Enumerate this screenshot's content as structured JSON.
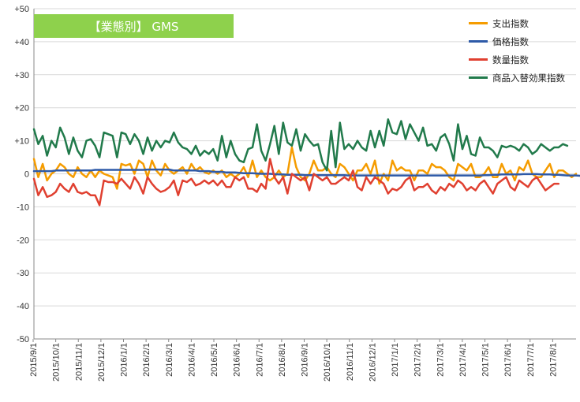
{
  "chart_data": {
    "type": "line",
    "title": "【業態別】 GMS",
    "xlabel": "",
    "ylabel": "",
    "ylim": [
      -50,
      50
    ],
    "y_ticks": [
      "+50",
      "+40",
      "+30",
      "+20",
      "+10",
      "0",
      "-10",
      "-20",
      "-30",
      "-40",
      "-50"
    ],
    "x_tick_labels": [
      "2015/9/1",
      "2015/10/1",
      "2015/11/1",
      "2015/12/1",
      "2016/1/1",
      "2016/2/1",
      "2016/3/1",
      "2016/4/1",
      "2016/5/1",
      "2016/6/1",
      "2016/7/1",
      "2016/8/1",
      "2016/9/1",
      "2016/10/1",
      "2016/11/1",
      "2016/12/1",
      "2017/1/1",
      "2017/2/1",
      "2017/3/1",
      "2017/4/1",
      "2017/5/1",
      "2017/6/1",
      "2017/7/1",
      "2017/8/1"
    ],
    "grid": true,
    "legend_position": "top-right",
    "series": [
      {
        "name": "支出指数",
        "color": "#f59c00",
        "values": [
          4.5,
          -1,
          3,
          -2,
          0,
          1,
          3,
          2,
          0,
          -1,
          2,
          0,
          -1,
          1,
          -1,
          1,
          0,
          -0.5,
          -1,
          -4.5,
          3,
          2.5,
          3,
          0,
          4,
          3,
          -1,
          4,
          1,
          -0.5,
          3,
          1,
          0,
          1,
          2,
          0,
          3,
          1,
          2,
          0.5,
          0,
          1,
          0,
          1,
          -1,
          0,
          -1,
          0,
          2,
          -1,
          4,
          -1,
          1,
          -1,
          -2,
          -1,
          1,
          -1,
          0,
          8,
          2,
          -1,
          -2,
          0,
          4,
          1,
          1,
          2,
          0,
          -1,
          3,
          2,
          0,
          -2,
          1,
          1,
          3,
          0,
          4,
          -3,
          0,
          -2,
          4,
          1,
          2,
          1,
          1,
          -2,
          1,
          1,
          0,
          3,
          2,
          2,
          1,
          -1,
          -2,
          3,
          2,
          1,
          3,
          -1,
          -1,
          0,
          2,
          -1,
          -1,
          3,
          0,
          1,
          -2,
          2,
          1,
          4,
          0,
          -1,
          -1,
          1,
          3,
          -1,
          1,
          1,
          0,
          -1,
          0
        ]
      },
      {
        "name": "価格指数",
        "color": "#2e5aa8",
        "values": [
          0.8,
          0.8,
          0.8,
          0.8,
          0.8,
          1,
          1,
          1,
          1,
          1,
          1,
          1,
          1,
          1,
          1.2,
          1.2,
          1.2,
          1.2,
          1.2,
          1.2,
          1.2,
          1.2,
          1.2,
          1.2,
          1.2,
          1.2,
          1.3,
          1.3,
          1.3,
          1.3,
          1.3,
          1.3,
          1,
          1,
          1,
          1,
          1,
          1,
          0.8,
          0.8,
          0.8,
          0.6,
          0.6,
          0.6,
          0.4,
          0.4,
          0.4,
          0.3,
          0.2,
          0.2,
          0.2,
          0.1,
          0,
          0,
          0,
          -0.1,
          -0.2,
          -0.2,
          -0.3,
          -0.3,
          -0.3,
          -0.3,
          -0.4,
          -0.4,
          -0.4,
          -0.4,
          -0.4,
          -0.4,
          -0.4,
          -0.4,
          -0.4,
          -0.4,
          -0.5,
          -0.5,
          -0.5,
          -0.5,
          -0.5,
          -0.5,
          -0.5,
          -0.5,
          -0.5,
          -0.5,
          -0.5,
          -0.5,
          -0.5,
          -0.5,
          -0.5,
          -0.5,
          -0.5,
          -0.5,
          -0.5,
          -0.5,
          -0.5,
          -0.5,
          -0.5,
          -0.5,
          -0.5,
          -0.5,
          -0.5,
          -0.5,
          -0.5,
          -0.5,
          -0.5,
          -0.4,
          -0.4,
          -0.3,
          -0.3,
          -0.2,
          -0.2,
          -0.2,
          -0.2,
          -0.2,
          -0.1,
          -0.1,
          -0.1,
          -0.1,
          -0.2,
          -0.2,
          -0.2,
          -0.3,
          -0.3,
          -0.4,
          -0.5,
          -0.5,
          -0.5,
          -0.6,
          -0.6
        ]
      },
      {
        "name": "数量指数",
        "color": "#e04030",
        "values": [
          -1.5,
          -6.5,
          -4,
          -7,
          -6.5,
          -5.5,
          -3,
          -4.5,
          -5.5,
          -3,
          -5.5,
          -6,
          -5.5,
          -6.5,
          -6.5,
          -9.5,
          -2,
          -2.5,
          -2.5,
          -3,
          -1.5,
          -3,
          -4.5,
          -1,
          -3,
          -6,
          -1,
          -3,
          -4.5,
          -5.5,
          -5,
          -4,
          -2,
          -6.5,
          -2,
          -2.5,
          -1.5,
          -3.5,
          -3,
          -2,
          -3,
          -2,
          -3.5,
          -2,
          -4,
          -4,
          -1,
          -2,
          -1,
          -4.5,
          -4.5,
          -5.5,
          -3,
          -4.5,
          4.5,
          -1,
          -3,
          -1,
          -6,
          0,
          -1,
          -2,
          -1,
          -5,
          0,
          -1,
          -2,
          -1,
          -3,
          -3,
          -2,
          -1,
          -2,
          1,
          -4,
          -5,
          -1,
          -3,
          -1,
          -2,
          -3,
          -6,
          -4.5,
          -5,
          -4,
          -2,
          -1,
          -5,
          -4,
          -4,
          -3,
          -5,
          -6,
          -4,
          -5,
          -3,
          -4,
          -2,
          -3,
          -5,
          -4,
          -5,
          -3,
          -2,
          -4,
          -6,
          -3,
          -2,
          -1,
          -4,
          -5,
          -2,
          -3,
          -4,
          -2,
          -1,
          -3,
          -5,
          -4,
          -3,
          -3
        ]
      },
      {
        "name": "商品入替効果指数",
        "color": "#217a4b",
        "values": [
          13.5,
          9,
          11.5,
          5.5,
          10,
          8,
          14,
          11,
          6,
          11,
          7,
          5,
          10,
          10.5,
          8.5,
          5,
          12.5,
          12,
          11.5,
          5,
          12.5,
          12,
          9,
          12,
          10,
          6,
          11,
          7,
          10,
          8,
          10,
          9.5,
          12.5,
          9.5,
          8,
          7.5,
          6,
          8.5,
          5.5,
          7,
          6,
          7.5,
          4,
          11.5,
          5,
          10,
          6,
          4,
          3.5,
          7.5,
          8,
          15,
          7,
          4,
          9,
          14.5,
          6,
          15.5,
          9.5,
          8.5,
          13.5,
          7,
          12,
          10,
          8.5,
          9,
          3.5,
          1,
          13,
          2,
          15.5,
          7.5,
          9,
          7.5,
          10,
          8,
          7,
          13,
          8,
          13,
          8.5,
          16.5,
          12.5,
          12,
          16,
          10.5,
          15,
          12.5,
          10,
          14,
          8.5,
          9,
          7,
          11,
          12,
          9,
          4,
          15,
          7.5,
          11.5,
          6,
          5.5,
          11,
          8,
          8,
          7,
          5,
          8.5,
          8,
          8.5,
          8,
          7,
          9,
          8,
          6,
          7,
          9,
          8,
          7,
          8,
          8,
          9,
          8.5
        ]
      }
    ]
  }
}
